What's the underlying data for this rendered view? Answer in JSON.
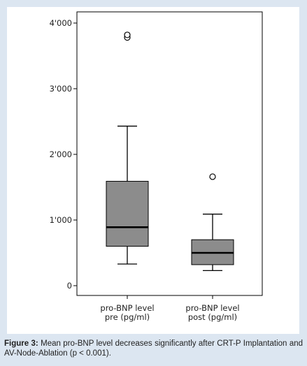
{
  "chart_data": {
    "type": "boxplot",
    "title": "",
    "xlabel": "",
    "ylabel": "",
    "ylim": [
      -100,
      4200
    ],
    "yticks": [
      0,
      1000,
      2000,
      3000,
      4000
    ],
    "ytick_labels": [
      "0",
      "1'000",
      "2'000",
      "3'000",
      "4'000"
    ],
    "grid": false,
    "box_color": "#8c8c8c",
    "categories": [
      [
        "pro-BNP level",
        "pre (pg/ml)"
      ],
      [
        "pro-BNP level",
        "post (pg/ml)"
      ]
    ],
    "series": [
      {
        "whisker_low": 330,
        "q1": 600,
        "median": 890,
        "q3": 1590,
        "whisker_high": 2430,
        "outliers": [
          3780,
          3820
        ]
      },
      {
        "whisker_low": 230,
        "q1": 320,
        "median": 500,
        "q3": 700,
        "whisker_high": 1090,
        "outliers": [
          1660
        ]
      }
    ]
  },
  "caption": {
    "label": "Figure 3:",
    "text": " Mean pro-BNP level decreases significantly after CRT-P Implantation and AV-Node-Ablation (p < 0.001)."
  }
}
